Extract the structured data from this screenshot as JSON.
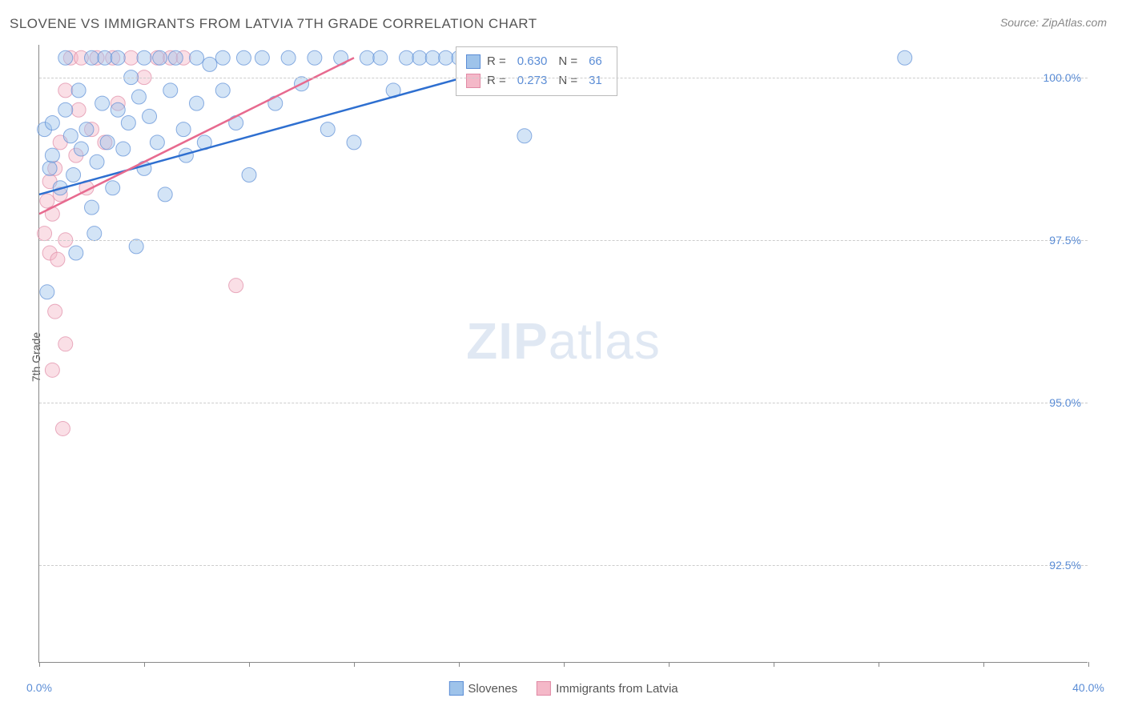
{
  "header": {
    "title": "SLOVENE VS IMMIGRANTS FROM LATVIA 7TH GRADE CORRELATION CHART",
    "source_prefix": "Source: ",
    "source_name": "ZipAtlas.com"
  },
  "ylabel": "7th Grade",
  "watermark_bold": "ZIP",
  "watermark_rest": "atlas",
  "chart": {
    "type": "scatter",
    "xlim": [
      0,
      40
    ],
    "ylim": [
      91.0,
      100.5
    ],
    "xtick_positions": [
      0,
      4,
      8,
      12,
      16,
      20,
      24,
      28,
      32,
      36,
      40
    ],
    "xtick_labels": {
      "0": "0.0%",
      "40": "40.0%"
    },
    "ytick_positions": [
      92.5,
      95.0,
      97.5,
      100.0
    ],
    "ytick_labels": [
      "92.5%",
      "95.0%",
      "97.5%",
      "100.0%"
    ],
    "grid_color": "#cccccc",
    "background_color": "#ffffff",
    "marker_radius": 9,
    "marker_opacity": 0.45,
    "series": [
      {
        "name": "Slovenes",
        "fill": "#9ec3ea",
        "stroke": "#5b8dd6",
        "line_color": "#2e6fd0",
        "stats": {
          "R": "0.630",
          "N": "66"
        },
        "trend": {
          "x1": 0,
          "y1": 98.2,
          "x2": 18,
          "y2": 100.2
        },
        "points": [
          [
            0.2,
            99.2
          ],
          [
            0.3,
            96.7
          ],
          [
            0.4,
            98.6
          ],
          [
            0.5,
            99.3
          ],
          [
            0.5,
            98.8
          ],
          [
            0.8,
            98.3
          ],
          [
            1.0,
            99.5
          ],
          [
            1.0,
            100.3
          ],
          [
            1.2,
            99.1
          ],
          [
            1.3,
            98.5
          ],
          [
            1.5,
            99.8
          ],
          [
            1.6,
            98.9
          ],
          [
            1.8,
            99.2
          ],
          [
            2.0,
            98.0
          ],
          [
            2.0,
            100.3
          ],
          [
            2.2,
            98.7
          ],
          [
            2.4,
            99.6
          ],
          [
            2.5,
            100.3
          ],
          [
            2.6,
            99.0
          ],
          [
            2.8,
            98.3
          ],
          [
            3.0,
            99.5
          ],
          [
            3.0,
            100.3
          ],
          [
            3.2,
            98.9
          ],
          [
            3.4,
            99.3
          ],
          [
            3.5,
            100.0
          ],
          [
            3.8,
            99.7
          ],
          [
            4.0,
            98.6
          ],
          [
            4.0,
            100.3
          ],
          [
            4.2,
            99.4
          ],
          [
            4.5,
            99.0
          ],
          [
            4.6,
            100.3
          ],
          [
            4.8,
            98.2
          ],
          [
            5.0,
            99.8
          ],
          [
            5.2,
            100.3
          ],
          [
            5.5,
            99.2
          ],
          [
            5.6,
            98.8
          ],
          [
            6.0,
            99.6
          ],
          [
            6.0,
            100.3
          ],
          [
            6.3,
            99.0
          ],
          [
            6.5,
            100.2
          ],
          [
            7.0,
            99.8
          ],
          [
            7.0,
            100.3
          ],
          [
            7.5,
            99.3
          ],
          [
            7.8,
            100.3
          ],
          [
            8.0,
            98.5
          ],
          [
            8.5,
            100.3
          ],
          [
            9.0,
            99.6
          ],
          [
            9.5,
            100.3
          ],
          [
            10.0,
            99.9
          ],
          [
            10.5,
            100.3
          ],
          [
            11.0,
            99.2
          ],
          [
            11.5,
            100.3
          ],
          [
            12.0,
            99.0
          ],
          [
            12.5,
            100.3
          ],
          [
            13.0,
            100.3
          ],
          [
            13.5,
            99.8
          ],
          [
            14.0,
            100.3
          ],
          [
            14.5,
            100.3
          ],
          [
            15.0,
            100.3
          ],
          [
            15.5,
            100.3
          ],
          [
            16.0,
            100.3
          ],
          [
            18.5,
            99.1
          ],
          [
            3.7,
            97.4
          ],
          [
            2.1,
            97.6
          ],
          [
            1.4,
            97.3
          ],
          [
            33.0,
            100.3
          ]
        ]
      },
      {
        "name": "Immigrants from Latvia",
        "fill": "#f4b8c8",
        "stroke": "#e08aa5",
        "line_color": "#e76a8f",
        "stats": {
          "R": "0.273",
          "N": "31"
        },
        "trend": {
          "x1": 0,
          "y1": 97.9,
          "x2": 12,
          "y2": 100.3
        },
        "points": [
          [
            0.2,
            97.6
          ],
          [
            0.3,
            98.1
          ],
          [
            0.4,
            97.3
          ],
          [
            0.4,
            98.4
          ],
          [
            0.5,
            97.9
          ],
          [
            0.6,
            98.6
          ],
          [
            0.7,
            97.2
          ],
          [
            0.8,
            99.0
          ],
          [
            0.8,
            98.2
          ],
          [
            1.0,
            99.8
          ],
          [
            1.0,
            97.5
          ],
          [
            1.2,
            100.3
          ],
          [
            1.4,
            98.8
          ],
          [
            1.5,
            99.5
          ],
          [
            1.6,
            100.3
          ],
          [
            1.8,
            98.3
          ],
          [
            2.0,
            99.2
          ],
          [
            2.2,
            100.3
          ],
          [
            2.5,
            99.0
          ],
          [
            2.8,
            100.3
          ],
          [
            3.0,
            99.6
          ],
          [
            3.5,
            100.3
          ],
          [
            4.0,
            100.0
          ],
          [
            4.5,
            100.3
          ],
          [
            5.0,
            100.3
          ],
          [
            5.5,
            100.3
          ],
          [
            7.5,
            96.8
          ],
          [
            0.5,
            95.5
          ],
          [
            1.0,
            95.9
          ],
          [
            0.9,
            94.6
          ],
          [
            0.6,
            96.4
          ]
        ]
      }
    ]
  },
  "legend": {
    "R_label": "R =",
    "N_label": "N ="
  },
  "bottom_legend": {
    "series1": "Slovenes",
    "series2": "Immigrants from Latvia"
  }
}
